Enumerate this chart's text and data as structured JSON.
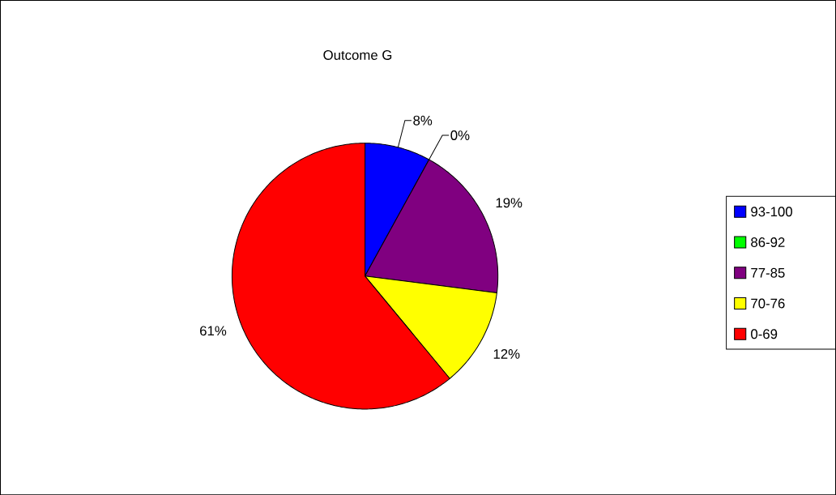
{
  "chart_data": {
    "type": "pie",
    "title": "Outcome G",
    "categories": [
      "93-100",
      "86-92",
      "77-85",
      "70-76",
      "0-69"
    ],
    "values": [
      8,
      0,
      19,
      12,
      61
    ],
    "colors": [
      "#0000ff",
      "#00ff00",
      "#800080",
      "#ffff00",
      "#ff0000"
    ],
    "value_labels": [
      "8%",
      "0%",
      "19%",
      "12%",
      "61%"
    ],
    "legend": "right"
  }
}
